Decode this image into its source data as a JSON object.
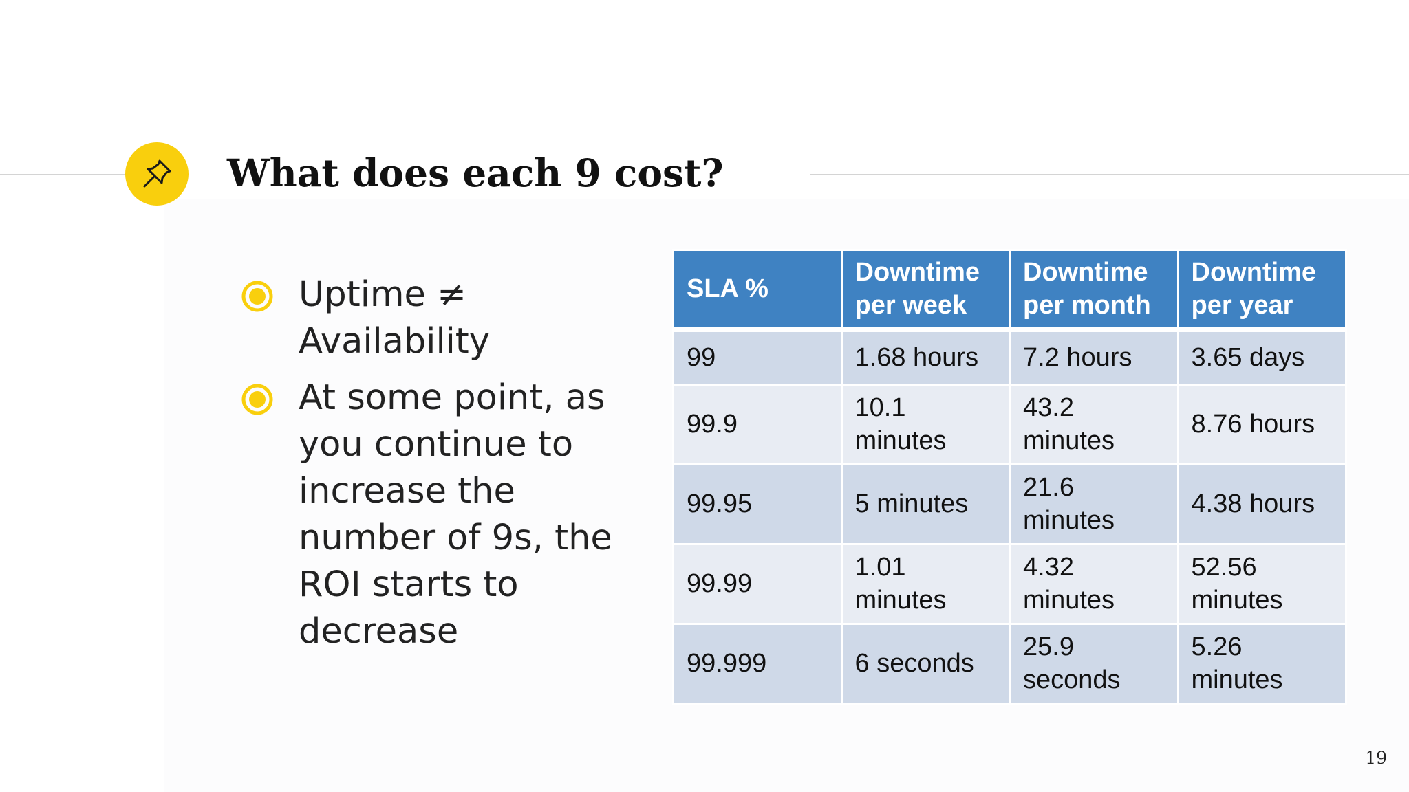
{
  "slide": {
    "title": "What does each 9 cost?",
    "page_number": "19",
    "accent_color": "#f9cf0d",
    "icon": "pushpin-icon"
  },
  "bullets": [
    {
      "text": "Uptime ≠ Availability"
    },
    {
      "text": "At some point, as you continue to increase the number of 9s, the ROI starts to decrease"
    }
  ],
  "table": {
    "header_color": "#3f82c2",
    "row_color_dark": "#cfd9e8",
    "row_color_light": "#e8ecf3",
    "headers": [
      "SLA %",
      "Downtime per week",
      "Downtime per month",
      "Downtime per year"
    ],
    "rows": [
      [
        "99",
        "1.68 hours",
        "7.2 hours",
        "3.65 days"
      ],
      [
        "99.9",
        "10.1 minutes",
        "43.2 minutes",
        "8.76 hours"
      ],
      [
        "99.95",
        "5 minutes",
        "21.6 minutes",
        "4.38 hours"
      ],
      [
        "99.99",
        "1.01 minutes",
        "4.32 minutes",
        "52.56 minutes"
      ],
      [
        "99.999",
        "6 seconds",
        "25.9 seconds",
        "5.26 minutes"
      ]
    ]
  }
}
